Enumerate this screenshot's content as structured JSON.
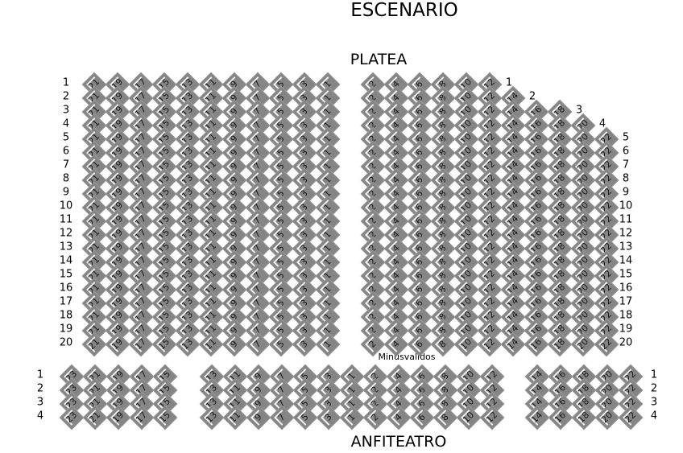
{
  "titles": {
    "stage": "ESCENARIO",
    "platea": "PLATEA",
    "anfiteatro": "ANFITEATRO",
    "minusvalidos": "Minusvalidos"
  },
  "colors": {
    "seat": "#858585",
    "seat_inner": "#f2f2f2",
    "text": "#000000"
  },
  "platea": {
    "rows": [
      1,
      2,
      3,
      4,
      5,
      6,
      7,
      8,
      9,
      10,
      11,
      12,
      13,
      14,
      15,
      16,
      17,
      18,
      19,
      20
    ],
    "left_seats": [
      21,
      19,
      17,
      15,
      13,
      11,
      9,
      7,
      5,
      3,
      1
    ],
    "right_seats": [
      2,
      4,
      6,
      8,
      10,
      12,
      14,
      16,
      18,
      20,
      22
    ],
    "right_row_last_seat": [
      12,
      14,
      18,
      20,
      22,
      22,
      22,
      22,
      22,
      22,
      22,
      22,
      22,
      22,
      22,
      22,
      22,
      22,
      22,
      22
    ]
  },
  "anfiteatro": {
    "rows": [
      1,
      2,
      3,
      4
    ],
    "left_seats": [
      23,
      21,
      19,
      17,
      15
    ],
    "center_seats": [
      13,
      11,
      9,
      7,
      5,
      3,
      1,
      2,
      4,
      6,
      8,
      10,
      12
    ],
    "right_seats": [
      14,
      16,
      18,
      20,
      22
    ]
  }
}
